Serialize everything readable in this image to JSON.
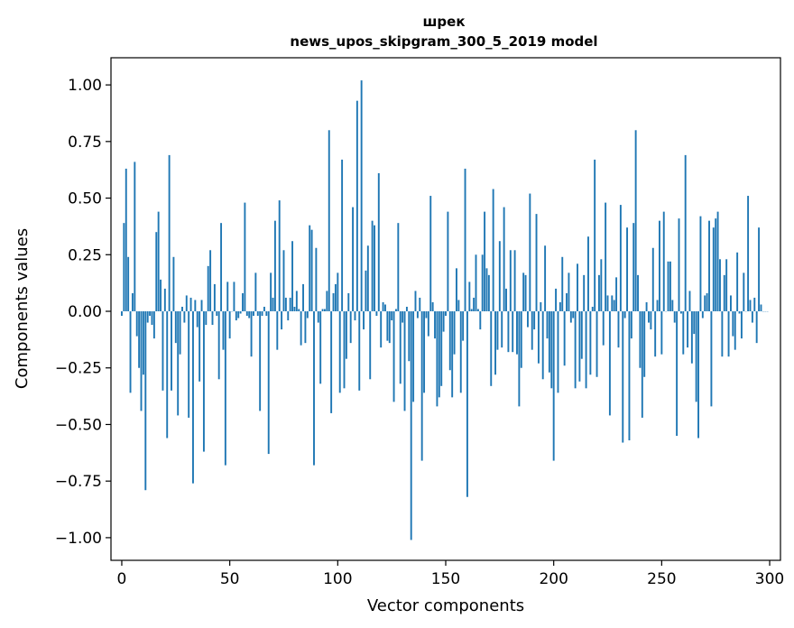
{
  "chart_data": {
    "type": "bar",
    "title_lines": [
      "шрек",
      "news_upos_skipgram_300_5_2019 model"
    ],
    "xlabel": "Vector components",
    "ylabel": "Components values",
    "xlim": [
      -5,
      305
    ],
    "ylim": [
      -1.1,
      1.12
    ],
    "xticks": [
      0,
      50,
      100,
      150,
      200,
      250,
      300
    ],
    "xtick_labels": [
      "0",
      "50",
      "100",
      "150",
      "200",
      "250",
      "300"
    ],
    "yticks": [
      1.0,
      0.75,
      0.5,
      0.25,
      0.0,
      -0.25,
      -0.5,
      -0.75,
      -1.0
    ],
    "ytick_labels": [
      "1.00",
      "0.75",
      "0.50",
      "0.25",
      "0.00",
      "−0.25",
      "−0.50",
      "−0.75",
      "−1.00"
    ],
    "bar_color": "#1f77b4",
    "grid": false,
    "values": [
      -0.02,
      0.39,
      0.63,
      0.24,
      -0.36,
      0.08,
      0.66,
      -0.11,
      -0.25,
      -0.44,
      -0.28,
      -0.79,
      -0.05,
      -0.02,
      -0.06,
      -0.12,
      0.35,
      0.44,
      0.14,
      -0.35,
      0.1,
      -0.56,
      0.69,
      -0.35,
      0.24,
      -0.14,
      -0.46,
      -0.19,
      0.02,
      -0.05,
      0.07,
      -0.47,
      0.06,
      -0.76,
      0.05,
      -0.07,
      -0.31,
      0.05,
      -0.62,
      -0.06,
      0.2,
      0.27,
      -0.06,
      0.12,
      -0.02,
      -0.3,
      0.39,
      -0.17,
      -0.68,
      0.13,
      -0.12,
      0.0,
      0.13,
      -0.04,
      -0.03,
      -0.01,
      0.08,
      0.48,
      -0.02,
      -0.03,
      -0.2,
      -0.02,
      0.17,
      -0.02,
      -0.44,
      -0.02,
      0.02,
      -0.02,
      -0.63,
      0.17,
      0.06,
      0.4,
      -0.17,
      0.49,
      -0.08,
      0.27,
      0.06,
      -0.04,
      0.06,
      0.31,
      0.02,
      0.09,
      0.01,
      -0.15,
      0.12,
      -0.14,
      -0.03,
      0.38,
      0.36,
      -0.68,
      0.28,
      -0.05,
      -0.32,
      0.01,
      0.01,
      0.09,
      0.8,
      -0.45,
      0.08,
      0.12,
      0.17,
      -0.36,
      0.67,
      -0.34,
      -0.21,
      0.08,
      -0.14,
      0.46,
      -0.04,
      0.93,
      -0.35,
      1.02,
      -0.08,
      0.18,
      0.29,
      -0.3,
      0.4,
      0.38,
      -0.02,
      0.61,
      -0.16,
      0.04,
      0.03,
      -0.13,
      -0.14,
      -0.04,
      -0.4,
      0.01,
      0.39,
      -0.32,
      -0.05,
      -0.44,
      0.02,
      -0.22,
      -1.01,
      -0.4,
      0.09,
      -0.03,
      0.06,
      -0.66,
      -0.36,
      -0.03,
      -0.11,
      0.51,
      0.04,
      -0.12,
      -0.42,
      -0.38,
      -0.33,
      -0.09,
      -0.02,
      0.44,
      -0.26,
      -0.38,
      -0.19,
      0.19,
      0.05,
      -0.36,
      -0.13,
      0.63,
      -0.82,
      0.13,
      0.01,
      0.06,
      0.25,
      0.01,
      -0.08,
      0.25,
      0.44,
      0.19,
      0.16,
      -0.33,
      0.54,
      -0.28,
      -0.17,
      0.31,
      -0.16,
      0.46,
      0.1,
      -0.18,
      0.27,
      -0.18,
      0.27,
      -0.19,
      -0.42,
      -0.25,
      0.17,
      0.16,
      -0.07,
      0.52,
      -0.17,
      -0.08,
      0.43,
      -0.23,
      0.04,
      -0.3,
      0.29,
      -0.12,
      -0.27,
      -0.34,
      -0.66,
      0.1,
      -0.36,
      0.04,
      0.24,
      -0.24,
      0.08,
      0.17,
      -0.05,
      -0.03,
      -0.34,
      0.21,
      -0.31,
      -0.21,
      0.16,
      -0.34,
      0.33,
      -0.28,
      0.02,
      0.67,
      -0.29,
      0.16,
      0.23,
      -0.15,
      0.48,
      0.07,
      -0.46,
      0.07,
      0.05,
      0.15,
      -0.16,
      0.47,
      -0.58,
      -0.03,
      0.37,
      -0.57,
      -0.12,
      0.39,
      0.8,
      0.16,
      -0.25,
      -0.47,
      -0.29,
      0.04,
      -0.05,
      -0.08,
      0.28,
      -0.2,
      0.05,
      0.4,
      -0.19,
      0.44,
      0.0,
      0.22,
      0.22,
      0.05,
      -0.05,
      -0.55,
      0.41,
      -0.01,
      -0.19,
      0.69,
      -0.16,
      0.09,
      -0.23,
      -0.1,
      -0.4,
      -0.56,
      0.42,
      -0.03,
      0.07,
      0.08,
      0.4,
      -0.42,
      0.37,
      0.41,
      0.44,
      0.23,
      -0.2,
      0.16,
      0.23,
      -0.2,
      0.07,
      -0.11,
      -0.17,
      0.26,
      -0.01,
      -0.12,
      0.17,
      0.0,
      0.51,
      0.05,
      -0.05,
      0.06,
      -0.14,
      0.37,
      0.03,
      0.0,
      0.0,
      0.0
    ]
  }
}
